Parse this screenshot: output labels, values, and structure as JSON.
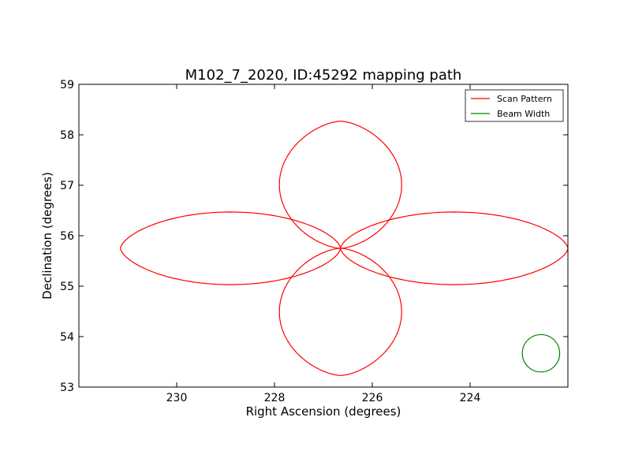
{
  "chart_data": {
    "type": "line",
    "title": "M102_7_2020, ID:45292 mapping path",
    "xlabel": "Right Ascension (degrees)",
    "ylabel": "Declination (degrees)",
    "xlim": [
      232.0,
      222.0
    ],
    "ylim": [
      53.0,
      59.0
    ],
    "xticks": [
      230,
      228,
      226,
      224
    ],
    "yticks": [
      53,
      54,
      55,
      56,
      57,
      58,
      59
    ],
    "grid": false,
    "legend_position": "top-right",
    "colors": {
      "scan": "#ff0000",
      "beam": "#008000"
    },
    "series": [
      {
        "name": "Scan Pattern",
        "style": "four-petal rose path",
        "center": [
          226.65,
          55.75
        ],
        "petals": [
          {
            "direction": "right",
            "tip": [
              222.0,
              55.75
            ],
            "max_half_width_dec": 0.72
          },
          {
            "direction": "up",
            "tip": [
              226.65,
              58.27
            ],
            "max_half_width_ra": 1.25
          },
          {
            "direction": "left",
            "tip": [
              231.15,
              55.75
            ],
            "max_half_width_dec": 0.72
          },
          {
            "direction": "down",
            "tip": [
              226.65,
              53.23
            ],
            "max_half_width_ra": 1.25
          }
        ]
      },
      {
        "name": "Beam Width",
        "style": "circle",
        "center": [
          222.55,
          53.67
        ],
        "radius_dec": 0.37
      }
    ]
  }
}
